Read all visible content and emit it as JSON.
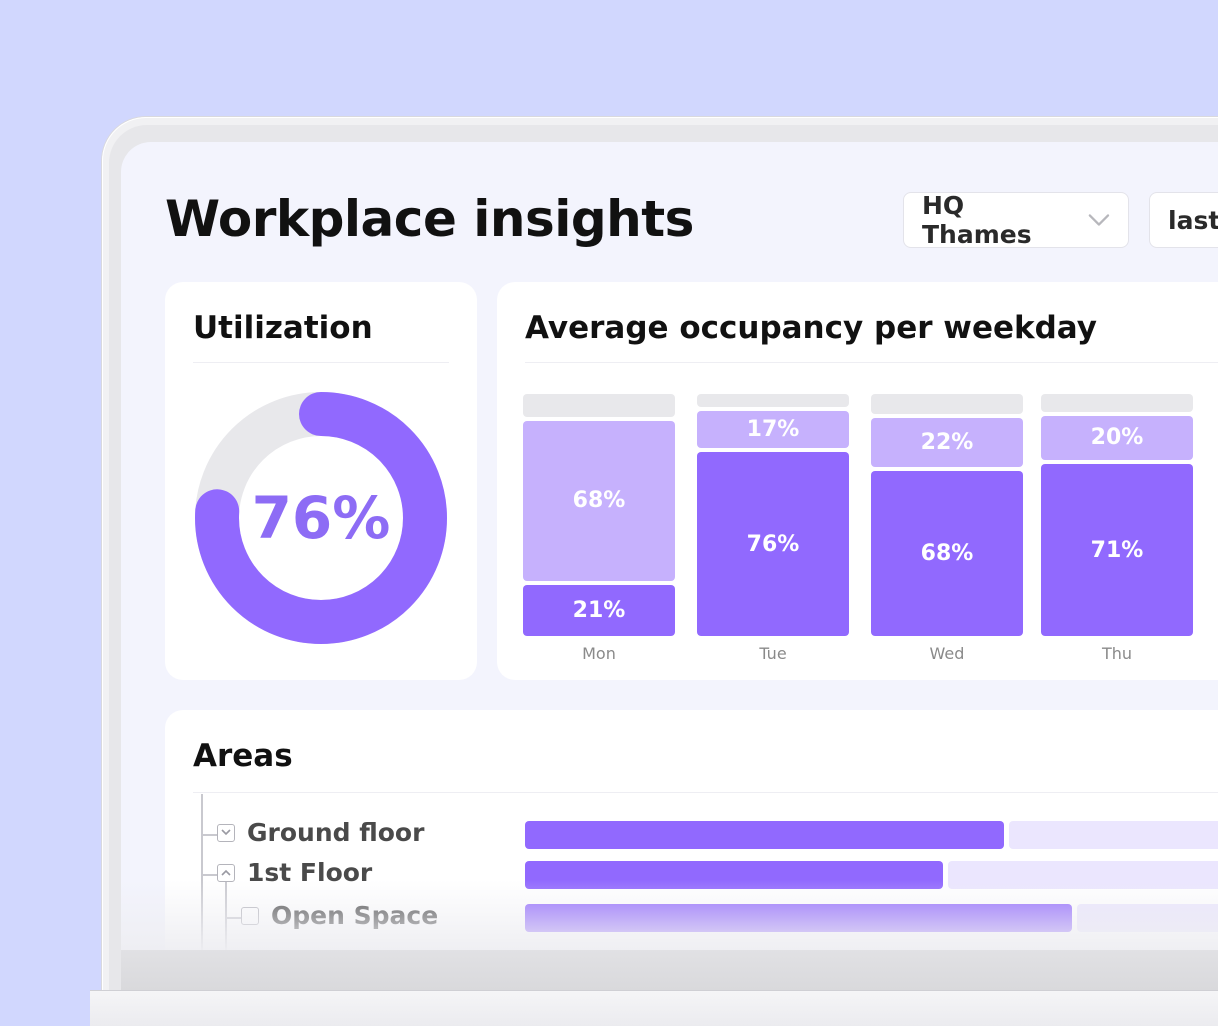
{
  "header": {
    "title": "Workplace insights",
    "location_select": "HQ Thames",
    "period_select": "last"
  },
  "utilization": {
    "title": "Utilization",
    "value_label": "76%",
    "value": 0.76
  },
  "occupancy": {
    "title": "Average occupancy per weekday"
  },
  "chart_data": {
    "type": "bar",
    "stacked": true,
    "categories": [
      "Mon",
      "Tue",
      "Wed",
      "Thu"
    ],
    "series": [
      {
        "values": [
          21,
          76,
          68,
          71
        ],
        "color": "#9169fe"
      },
      {
        "values": [
          68,
          17,
          22,
          20
        ],
        "color": "#c6b1fd"
      }
    ],
    "ylim": [
      0,
      100
    ],
    "title": "Average occupancy per weekday"
  },
  "areas": {
    "title": "Areas",
    "items": [
      {
        "label": "Ground floor",
        "toggle": "collapsed",
        "level": 0,
        "value": 0.63
      },
      {
        "label": "1st Floor",
        "toggle": "expanded",
        "level": 0,
        "value": 0.55
      },
      {
        "label": "Open Space",
        "toggle": "none",
        "level": 1,
        "value": 0.72
      }
    ]
  },
  "colors": {
    "accent": "#9169fe",
    "accent_light": "#c6b1fd",
    "background": "#d1d7fe"
  }
}
